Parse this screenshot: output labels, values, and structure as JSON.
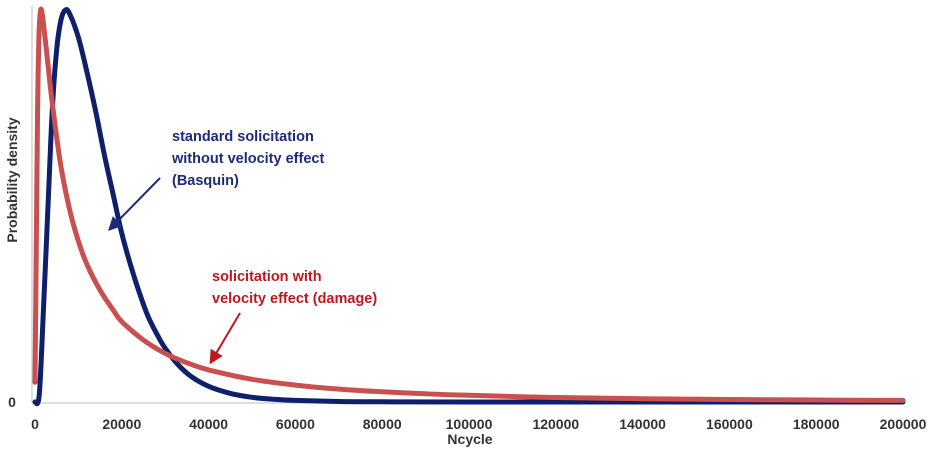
{
  "chart_data": {
    "type": "line",
    "xlabel": "Ncycle",
    "ylabel": "Probability density",
    "xlim": [
      0,
      200000
    ],
    "x_ticks": [
      "0",
      "20000",
      "40000",
      "60000",
      "80000",
      "100000",
      "120000",
      "140000",
      "160000",
      "180000",
      "200000"
    ],
    "y_tick_zero": "0",
    "grid": false,
    "series": [
      {
        "key": "basquin",
        "color": "#0e1f6b",
        "points": [
          [
            0,
            0
          ],
          [
            1000,
            0.02
          ],
          [
            2000,
            0.25
          ],
          [
            3000,
            0.5
          ],
          [
            4000,
            0.75
          ],
          [
            5000,
            0.9
          ],
          [
            6000,
            0.975
          ],
          [
            7000,
            1.0
          ],
          [
            8000,
            0.99
          ],
          [
            10000,
            0.93
          ],
          [
            12000,
            0.84
          ],
          [
            14000,
            0.74
          ],
          [
            16000,
            0.63
          ],
          [
            18000,
            0.53
          ],
          [
            20000,
            0.43
          ],
          [
            22000,
            0.35
          ],
          [
            24000,
            0.28
          ],
          [
            26000,
            0.22
          ],
          [
            28000,
            0.175
          ],
          [
            30000,
            0.137
          ],
          [
            33000,
            0.095
          ],
          [
            36000,
            0.065
          ],
          [
            40000,
            0.04
          ],
          [
            45000,
            0.022
          ],
          [
            50000,
            0.012
          ],
          [
            55000,
            0.007
          ],
          [
            60000,
            0.004
          ],
          [
            70000,
            0.0012
          ],
          [
            80000,
            0.0004
          ],
          [
            100000,
            0
          ],
          [
            200000,
            0
          ]
        ]
      },
      {
        "key": "damage",
        "color": "#c9504f",
        "points": [
          [
            0,
            0.05
          ],
          [
            300,
            0.4
          ],
          [
            600,
            0.75
          ],
          [
            900,
            0.93
          ],
          [
            1200,
            0.99
          ],
          [
            1500,
            1.0
          ],
          [
            2000,
            0.96
          ],
          [
            3000,
            0.86
          ],
          [
            4000,
            0.76
          ],
          [
            6000,
            0.6
          ],
          [
            8000,
            0.49
          ],
          [
            10000,
            0.41
          ],
          [
            12000,
            0.35
          ],
          [
            15000,
            0.285
          ],
          [
            18000,
            0.235
          ],
          [
            20000,
            0.205
          ],
          [
            25000,
            0.158
          ],
          [
            30000,
            0.124
          ],
          [
            35000,
            0.1
          ],
          [
            40000,
            0.082
          ],
          [
            50000,
            0.058
          ],
          [
            60000,
            0.043
          ],
          [
            70000,
            0.033
          ],
          [
            80000,
            0.026
          ],
          [
            90000,
            0.021
          ],
          [
            100000,
            0.017
          ],
          [
            120000,
            0.0115
          ],
          [
            140000,
            0.0085
          ],
          [
            160000,
            0.0065
          ],
          [
            180000,
            0.005
          ],
          [
            200000,
            0.004
          ]
        ]
      }
    ],
    "annotations": [
      {
        "key": "basquin",
        "color": "#1d2a7a",
        "lines": [
          "standard solicitation",
          "without velocity effect",
          "(Basquin)"
        ]
      },
      {
        "key": "damage",
        "color": "#c0171e",
        "lines": [
          "solicitation with",
          "velocity effect (damage)"
        ]
      }
    ]
  }
}
